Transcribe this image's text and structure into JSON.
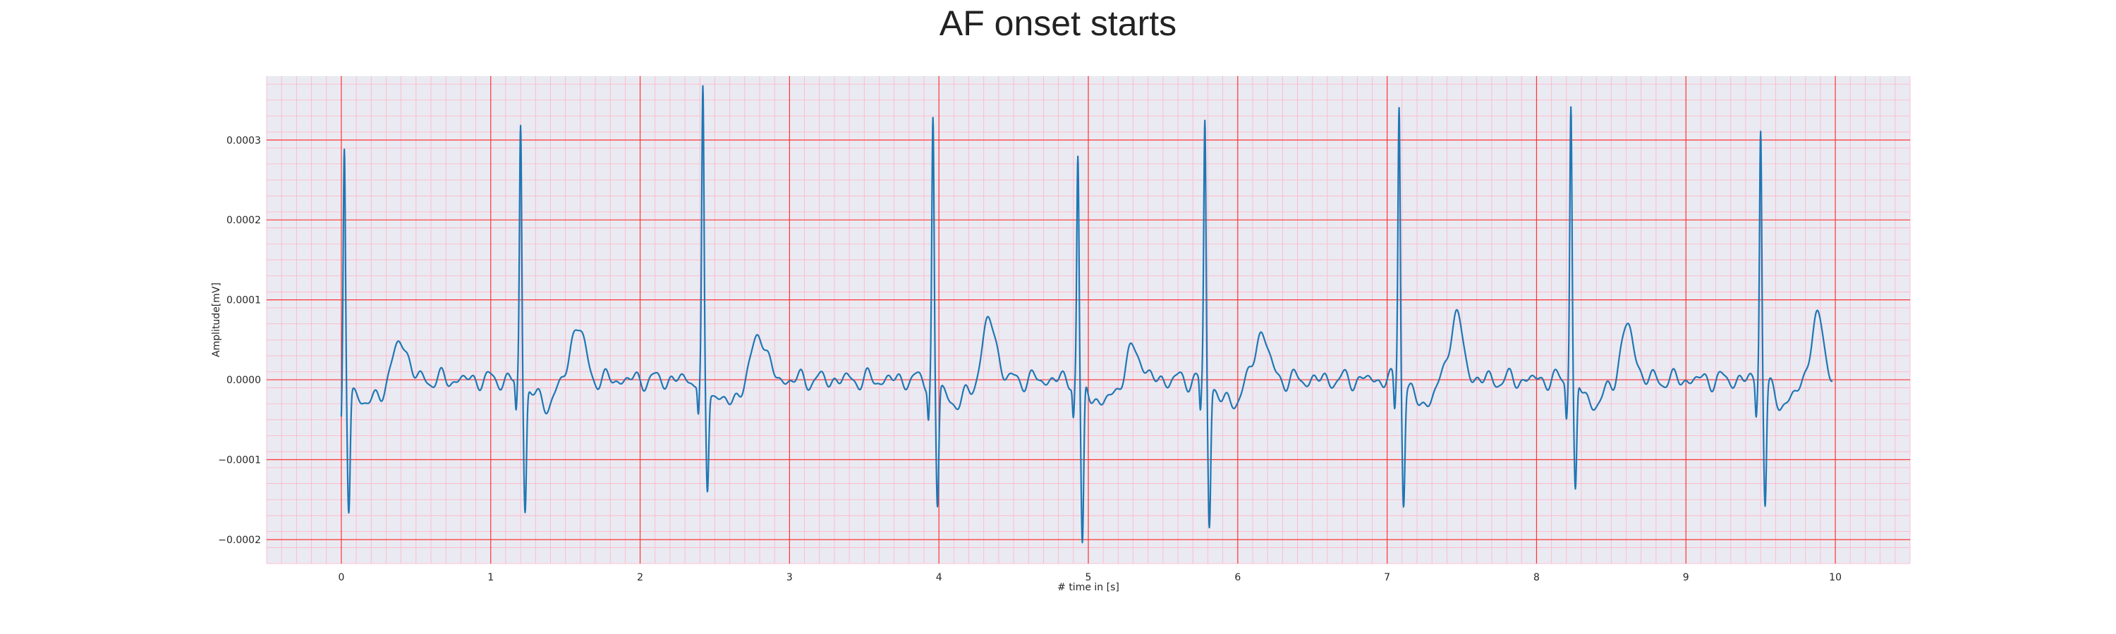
{
  "chart_data": {
    "type": "line",
    "title": "AF onset starts",
    "xlabel": "# time in [s]",
    "ylabel": "Amplitude[mV]",
    "xlim": [
      -0.5,
      10.5
    ],
    "ylim": [
      -0.00023,
      0.00038
    ],
    "xticks": [
      0,
      1,
      2,
      3,
      4,
      5,
      6,
      7,
      8,
      9,
      10
    ],
    "xtick_labels": [
      "0",
      "1",
      "2",
      "3",
      "4",
      "5",
      "6",
      "7",
      "8",
      "9",
      "10"
    ],
    "yticks": [
      -0.0002,
      -0.0001,
      0.0,
      0.0001,
      0.0002,
      0.0003
    ],
    "ytick_labels": [
      "−0.0002",
      "−0.0001",
      "0.0000",
      "0.0001",
      "0.0002",
      "0.0003"
    ],
    "grid": {
      "major": true,
      "minor": true
    },
    "colors": {
      "background": "#eaeaf2",
      "major_grid": "#ff3333",
      "minor_grid": "#ffb3c6",
      "line": "#1f77b4"
    },
    "beats": [
      {
        "r_time": 0.02,
        "r_peak": 0.00031,
        "s_depth": -0.00016,
        "t_amp": 5e-05
      },
      {
        "r_time": 1.2,
        "r_peak": 0.00032,
        "s_depth": -0.000155,
        "t_amp": 7e-05
      },
      {
        "r_time": 2.42,
        "r_peak": 0.000355,
        "s_depth": -0.000135,
        "t_amp": 6e-05
      },
      {
        "r_time": 3.96,
        "r_peak": 0.000325,
        "s_depth": -0.000155,
        "t_amp": 7.5e-05
      },
      {
        "r_time": 4.93,
        "r_peak": 0.00028,
        "s_depth": -0.00021,
        "t_amp": 4e-05
      },
      {
        "r_time": 5.78,
        "r_peak": 0.000325,
        "s_depth": -0.000175,
        "t_amp": 6e-05
      },
      {
        "r_time": 7.08,
        "r_peak": 0.00035,
        "s_depth": -0.000145,
        "t_amp": 8e-05
      },
      {
        "r_time": 8.23,
        "r_peak": 0.00035,
        "s_depth": -0.00014,
        "t_amp": 6.5e-05
      },
      {
        "r_time": 9.5,
        "r_peak": 0.00032,
        "s_depth": -0.00015,
        "t_amp": 7.5e-05
      }
    ],
    "signal": {
      "x_start": 0.0,
      "x_end": 9.98,
      "start_value": -5e-05,
      "end_value": 0.0,
      "fibrillation_amplitude": 1e-05
    }
  }
}
